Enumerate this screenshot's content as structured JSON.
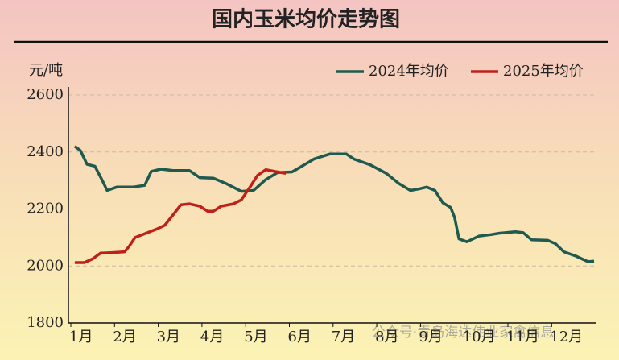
{
  "chart_data": {
    "type": "line",
    "title": "国内玉米均价走势图",
    "y_label": "元/吨",
    "watermark": "公众号·青岛海达伟业家禽信息",
    "xlim": [
      1,
      13
    ],
    "xticks": [
      {
        "value": 1,
        "label": "1月"
      },
      {
        "value": 2,
        "label": "2月"
      },
      {
        "value": 3,
        "label": "3月"
      },
      {
        "value": 4,
        "label": "4月"
      },
      {
        "value": 5,
        "label": "5月"
      },
      {
        "value": 6,
        "label": "6月"
      },
      {
        "value": 7,
        "label": "7月"
      },
      {
        "value": 8,
        "label": "8月"
      },
      {
        "value": 9,
        "label": "9月"
      },
      {
        "value": 10,
        "label": "10月"
      },
      {
        "value": 11,
        "label": "11月"
      },
      {
        "value": 12,
        "label": "12月"
      }
    ],
    "ylim": [
      1800,
      2600
    ],
    "yticks": [
      1800,
      2000,
      2200,
      2400,
      2600
    ],
    "grid": true,
    "legend": "top-right",
    "series": [
      {
        "name": "2024年均价",
        "color": "#1f5a4f",
        "x": [
          1.09,
          1.22,
          1.37,
          1.55,
          1.72,
          1.83,
          2.05,
          2.42,
          2.69,
          2.84,
          3.06,
          3.34,
          3.71,
          3.95,
          4.26,
          4.57,
          4.9,
          5.18,
          5.45,
          5.73,
          6.06,
          6.23,
          6.56,
          6.93,
          7.3,
          7.48,
          7.85,
          8.22,
          8.5,
          8.77,
          8.96,
          9.14,
          9.33,
          9.51,
          9.69,
          9.78,
          9.88,
          10.06,
          10.34,
          10.61,
          10.8,
          11.02,
          11.17,
          11.35,
          11.54,
          11.91,
          12.09,
          12.28,
          12.55,
          12.83,
          12.97
        ],
        "values": [
          2420,
          2405,
          2357,
          2350,
          2300,
          2265,
          2277,
          2277,
          2283,
          2332,
          2340,
          2335,
          2335,
          2310,
          2308,
          2288,
          2262,
          2265,
          2302,
          2328,
          2330,
          2345,
          2375,
          2393,
          2393,
          2375,
          2355,
          2325,
          2290,
          2265,
          2270,
          2277,
          2265,
          2222,
          2205,
          2170,
          2095,
          2085,
          2105,
          2110,
          2115,
          2118,
          2120,
          2117,
          2092,
          2090,
          2078,
          2050,
          2035,
          2015,
          2017
        ]
      },
      {
        "name": "2025年均价",
        "color": "#c0201a",
        "x": [
          1.09,
          1.31,
          1.5,
          1.68,
          1.96,
          2.23,
          2.33,
          2.47,
          2.69,
          2.97,
          3.15,
          3.34,
          3.52,
          3.71,
          3.95,
          4.13,
          4.26,
          4.44,
          4.72,
          4.9,
          5.09,
          5.27,
          5.46,
          5.73,
          5.92
        ],
        "values": [
          2012,
          2012,
          2025,
          2045,
          2047,
          2050,
          2068,
          2100,
          2113,
          2130,
          2143,
          2180,
          2215,
          2218,
          2210,
          2192,
          2192,
          2210,
          2218,
          2232,
          2275,
          2318,
          2338,
          2330,
          2325
        ]
      }
    ]
  }
}
